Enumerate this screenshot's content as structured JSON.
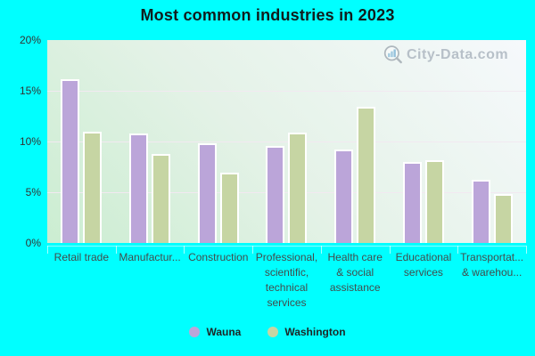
{
  "title": "Most common industries in 2023",
  "watermark": {
    "text": "City-Data.com"
  },
  "y_axis": {
    "tick_labels": [
      "20%",
      "15%",
      "10%",
      "5%",
      "0%"
    ]
  },
  "legend": {
    "items": [
      {
        "label": "Wauna",
        "color": "#bba5d9"
      },
      {
        "label": "Washington",
        "color": "#c6d5a3"
      }
    ]
  },
  "colors": {
    "page_background": "#00ffff",
    "plot_gradient_top_right": "#f6f9fc",
    "plot_gradient_bottom_left": "#cbedd1",
    "gridline": "#f2e9f1",
    "wauna_bar": "#bba5d9",
    "washington_bar": "#c6d5a3",
    "bar_border": "#ffffff",
    "title_text": "#101c1c",
    "axis_text": "#424c4c",
    "watermark_text": "#a9b3bd"
  },
  "chart_data": {
    "type": "bar",
    "title": "Most common industries in 2023",
    "categories": [
      "Retail trade",
      "Manufactur...",
      "Construction",
      "Professional,\nscientific,\ntechnical\nservices",
      "Health care\n& social\nassistance",
      "Educational\nservices",
      "Transportat...\n& warehou..."
    ],
    "series": [
      {
        "name": "Wauna",
        "color": "#bba5d9",
        "values": [
          16.1,
          10.8,
          9.8,
          9.6,
          9.2,
          8.0,
          6.2
        ]
      },
      {
        "name": "Washington",
        "color": "#c6d5a3",
        "values": [
          11.0,
          8.8,
          6.9,
          10.9,
          13.4,
          8.2,
          4.8
        ]
      }
    ],
    "ylabel": "",
    "xlabel": "",
    "ylim": [
      0,
      20
    ],
    "ytick_step": 5,
    "grid": true,
    "legend_position": "bottom"
  }
}
